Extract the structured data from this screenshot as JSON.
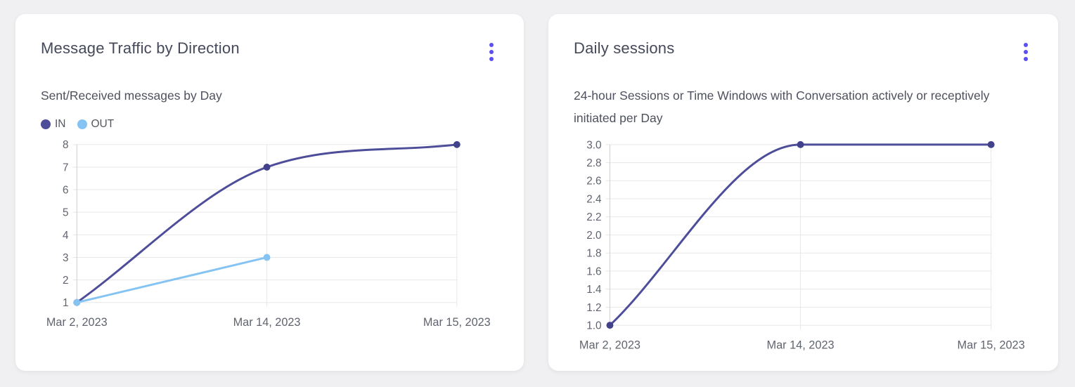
{
  "page": {
    "background_color": "#f0f0f2"
  },
  "colors": {
    "accent": "#5b4ff0",
    "grid": "#e7e7e9",
    "axis": "#cdced3",
    "tick_label": "#60646e",
    "title": "#45495a",
    "subtitle": "#4e515e"
  },
  "cards": [
    {
      "title": "Message Traffic by Direction",
      "subtitle": "Sent/Received messages by Day"
    },
    {
      "title": "Daily sessions",
      "subtitle": "24-hour Sessions or Time Windows with Conversation actively or receptively initiated per Day"
    }
  ],
  "chart_data": [
    {
      "type": "line",
      "title": "Message Traffic by Direction",
      "subtitle": "Sent/Received messages by Day",
      "categories": [
        "Mar 2, 2023",
        "Mar 14, 2023",
        "Mar 15, 2023"
      ],
      "series": [
        {
          "name": "IN",
          "values": [
            1,
            7,
            8
          ],
          "color": "#4d4d99",
          "point_color": "#42428c"
        },
        {
          "name": "OUT",
          "values": [
            1,
            3,
            null
          ],
          "color": "#85c4f2",
          "point_color": "#85c4f2"
        }
      ],
      "xlabel": "",
      "ylabel": "",
      "ylim": [
        1,
        8
      ],
      "yticks": [
        8,
        7,
        6,
        5,
        4,
        3,
        2,
        1
      ],
      "tick_decimals": 0,
      "grid": true,
      "legend_position": "top-left",
      "line_style": "smooth"
    },
    {
      "type": "line",
      "title": "Daily sessions",
      "subtitle": "24-hour Sessions or Time Windows with Conversation actively or receptively initiated per Day",
      "categories": [
        "Mar 2, 2023",
        "Mar 14, 2023",
        "Mar 15, 2023"
      ],
      "series": [
        {
          "name": "Daily sessions",
          "values": [
            1,
            3,
            3
          ],
          "color": "#4d4d99",
          "point_color": "#42428c"
        }
      ],
      "xlabel": "",
      "ylabel": "",
      "ylim": [
        1,
        3
      ],
      "yticks": [
        3,
        2.8,
        2.6,
        2.4,
        2.2,
        2,
        1.8,
        1.6,
        1.4,
        1.2,
        1
      ],
      "tick_decimals": 1,
      "grid": true,
      "legend_position": "none",
      "line_style": "smooth"
    }
  ]
}
